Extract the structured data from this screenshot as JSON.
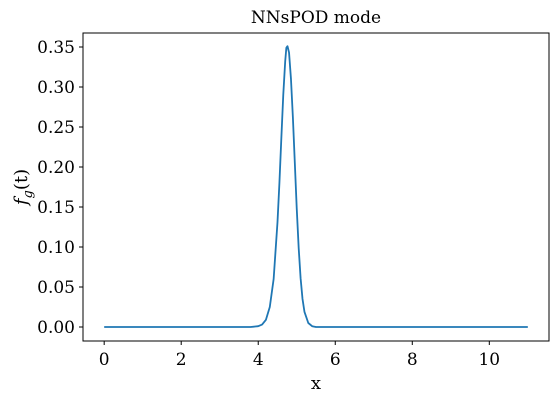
{
  "chart_data": {
    "type": "line",
    "title": "NNsPOD mode",
    "xlabel": "x",
    "ylabel_main": "f",
    "ylabel_sub": "g",
    "ylabel_arg": "(t)",
    "xlim": [
      -0.55,
      11.55
    ],
    "ylim": [
      -0.0175,
      0.3675
    ],
    "x_ticks": [
      0,
      2,
      4,
      6,
      8,
      10
    ],
    "x_tick_labels": [
      "0",
      "2",
      "4",
      "6",
      "8",
      "10"
    ],
    "y_ticks": [
      0.0,
      0.05,
      0.1,
      0.15,
      0.2,
      0.25,
      0.3,
      0.35
    ],
    "y_tick_labels": [
      "0.00",
      "0.05",
      "0.10",
      "0.15",
      "0.20",
      "0.25",
      "0.30",
      "0.35"
    ],
    "grid": false,
    "series": [
      {
        "color": "#1f77b4",
        "x": [
          0,
          1,
          2,
          3,
          3.8,
          4.0,
          4.1,
          4.2,
          4.3,
          4.4,
          4.5,
          4.55,
          4.6,
          4.65,
          4.7,
          4.73,
          4.76,
          4.8,
          4.85,
          4.9,
          4.95,
          5.0,
          5.05,
          5.1,
          5.15,
          5.2,
          5.3,
          5.4,
          5.5,
          5.6,
          6,
          7,
          8,
          9,
          10,
          11
        ],
        "y": [
          0,
          0,
          0,
          0,
          0,
          0.001,
          0.003,
          0.009,
          0.025,
          0.06,
          0.131,
          0.18,
          0.236,
          0.29,
          0.332,
          0.349,
          0.351,
          0.343,
          0.31,
          0.262,
          0.205,
          0.148,
          0.099,
          0.061,
          0.035,
          0.019,
          0.005,
          0.001,
          0,
          0,
          0,
          0,
          0,
          0,
          0,
          0
        ]
      }
    ]
  }
}
